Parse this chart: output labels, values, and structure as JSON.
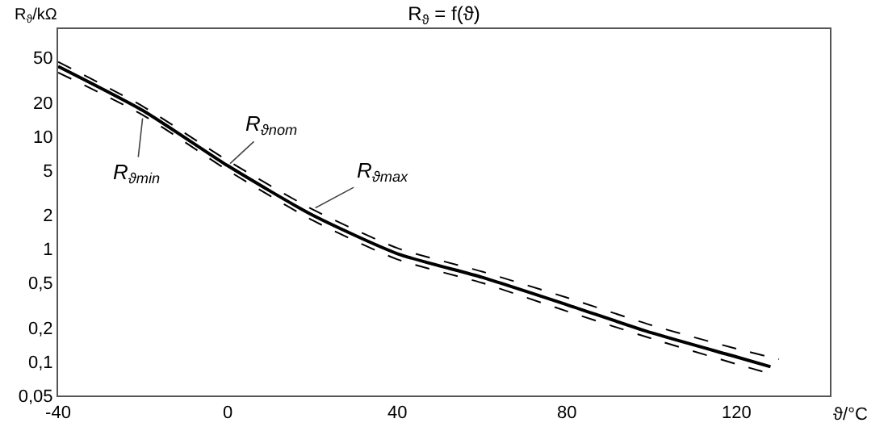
{
  "chart_data": {
    "type": "line",
    "title": "R$_{ϑ}$ = f(ϑ)",
    "xlabel": "ϑ/°C",
    "ylabel": "R$_{ϑ}$/kΩ",
    "log": "y",
    "grid": false,
    "legend": false,
    "marker": "none",
    "xlim": [
      -40,
      142
    ],
    "xticks": [
      -40,
      0,
      40,
      80,
      120
    ],
    "ylim": [
      0.05,
      90
    ],
    "yticks": [
      {
        "value": 0.05,
        "label": "0,05"
      },
      {
        "value": 0.1,
        "label": "0,1"
      },
      {
        "value": 0.2,
        "label": "0,2"
      },
      {
        "value": 0.5,
        "label": "0,5"
      },
      1,
      2,
      5,
      10,
      20,
      50
    ],
    "series": [
      {
        "name": "R$_{ϑnom}$",
        "color": "#000000",
        "line_style": "solid",
        "x": [
          -40,
          -20,
          0,
          20,
          40,
          60,
          80,
          100,
          120,
          128
        ],
        "values": [
          42,
          17,
          5.5,
          2.0,
          0.91,
          0.56,
          0.32,
          0.18,
          0.11,
          0.09
        ]
      },
      {
        "name": "R$_{ϑmax}$",
        "color": "#000000",
        "line_style": "dashed",
        "x": [
          -40,
          -20,
          0,
          20,
          40,
          60,
          80,
          100,
          120,
          130
        ],
        "values": [
          46,
          18.5,
          6.1,
          2.25,
          1.02,
          0.63,
          0.37,
          0.21,
          0.13,
          0.105
        ]
      },
      {
        "name": "R$_{ϑmin}$",
        "color": "#000000",
        "line_style": "dashed",
        "x": [
          -40,
          -20,
          0,
          20,
          40,
          60,
          80,
          100,
          120,
          127
        ],
        "values": [
          37,
          15.5,
          5.0,
          1.8,
          0.81,
          0.5,
          0.28,
          0.16,
          0.095,
          0.08
        ]
      }
    ]
  }
}
